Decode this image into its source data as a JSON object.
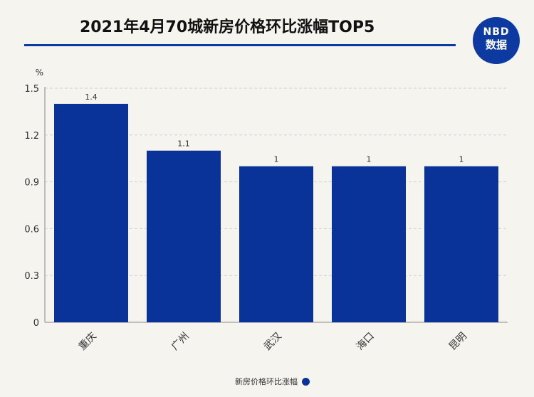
{
  "header": {
    "title": "2021年4月70城新房价格环比涨幅TOP5",
    "badge_line1": "NBD",
    "badge_line2": "数据"
  },
  "colors": {
    "bar": "#0a3399",
    "accent": "#0d3aa0",
    "grid": "#cfcfcf",
    "axis": "#888888"
  },
  "chart_data": {
    "type": "bar",
    "title": "2021年4月70城新房价格环比涨幅TOP5",
    "ylabel": "%",
    "xlabel": "",
    "categories": [
      "重庆",
      "广州",
      "武汉",
      "海口",
      "昆明"
    ],
    "series": [
      {
        "name": "新房价格环比涨幅",
        "values": [
          1.4,
          1.1,
          1,
          1,
          1
        ],
        "labels": [
          "1.4",
          "1.1",
          "1",
          "1",
          "1"
        ]
      }
    ],
    "ylim": [
      0,
      1.5
    ],
    "yticks": [
      "0",
      "0.3",
      "0.6",
      "0.9",
      "1.2",
      "1.5"
    ],
    "grid": true,
    "legend_position": "bottom"
  }
}
